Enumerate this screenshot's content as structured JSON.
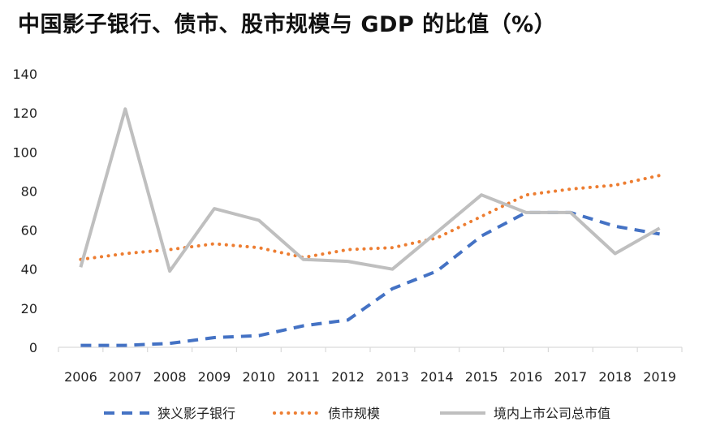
{
  "title": "中国影子银行、债市、股市规模与 GDP 的比值（%）",
  "chart_data": {
    "type": "line",
    "title": "中国影子银行、债市、股市规模与 GDP 的比值（%）",
    "x": [
      "2006",
      "2007",
      "2008",
      "2009",
      "2010",
      "2011",
      "2012",
      "2013",
      "2014",
      "2015",
      "2016",
      "2017",
      "2018",
      "2019"
    ],
    "ylim": [
      0,
      140
    ],
    "yticks": [
      "0",
      "20",
      "40",
      "60",
      "80",
      "100",
      "120",
      "140"
    ],
    "grid": false,
    "legend_position": "bottom",
    "series": [
      {
        "name": "狭义影子银行",
        "color": "#4472C4",
        "style": "dashed",
        "values": [
          1,
          1,
          2,
          5,
          6,
          11,
          14,
          30,
          39,
          57,
          69,
          69,
          62,
          58
        ]
      },
      {
        "name": "债市规模",
        "color": "#ED7D31",
        "style": "dotted",
        "values": [
          45,
          48,
          50,
          53,
          51,
          46,
          50,
          51,
          56,
          67,
          78,
          81,
          83,
          88
        ]
      },
      {
        "name": "境内上市公司总市值",
        "color": "#BFBFBF",
        "style": "solid",
        "values": [
          41,
          122,
          39,
          71,
          65,
          45,
          44,
          40,
          59,
          78,
          69,
          69,
          48,
          61
        ]
      }
    ]
  }
}
